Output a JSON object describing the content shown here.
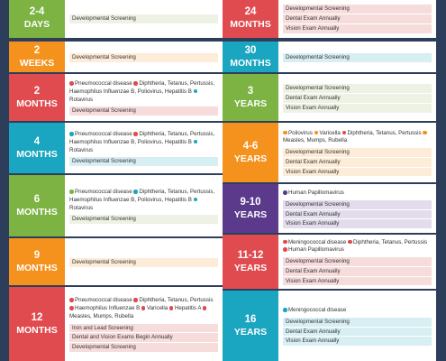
{
  "colors": {
    "red": "#e04b4f",
    "orange": "#f5921e",
    "green": "#7cb342",
    "teal": "#1aa5c0",
    "purple": "#5b3a8c",
    "navy": "#2c3e5a"
  },
  "left": [
    {
      "age_top": "2-4",
      "age_bottom": "DAYS",
      "color": "#7cb342",
      "vaccines": [],
      "tags": [
        {
          "text": "Developmental Screening",
          "bg": "#eef2e4"
        }
      ]
    },
    {
      "age_top": "2",
      "age_bottom": "WEEKS",
      "color": "#f5921e",
      "vaccines": [],
      "tags": [
        {
          "text": "Developmental Screening",
          "bg": "#fdecd7"
        }
      ]
    },
    {
      "age_top": "2",
      "age_bottom": "MONTHS",
      "color": "#e04b4f",
      "vaccines": [
        {
          "c": "#e04b4f",
          "t": "Pneumococcal disease "
        },
        {
          "c": "#e04b4f",
          "t": "Diphtheria, Tetanus, Pertussis, Haemophilus Influenzae B, Poliovirus, Hepatitis B "
        },
        {
          "c": "#1aa5c0",
          "t": "Rotavirus"
        }
      ],
      "tags": [
        {
          "text": "Developmental Screening",
          "bg": "#f7dcdc"
        }
      ]
    },
    {
      "age_top": "4",
      "age_bottom": "MONTHS",
      "color": "#1aa5c0",
      "vaccines": [
        {
          "c": "#1aa5c0",
          "t": "Pneumococcal disease "
        },
        {
          "c": "#e04b4f",
          "t": "Diphtheria, Tetanus, Pertussis, Haemophilus Influenzae B, Poliovirus, Hepatitis B "
        },
        {
          "c": "#1aa5c0",
          "t": "Rotavirus"
        }
      ],
      "tags": [
        {
          "text": "Developmental Screening",
          "bg": "#d7eef3"
        }
      ]
    },
    {
      "age_top": "6",
      "age_bottom": "MONTHS",
      "color": "#7cb342",
      "vaccines": [
        {
          "c": "#7cb342",
          "t": "Pneumococcal disease "
        },
        {
          "c": "#1aa5c0",
          "t": "Diphtheria, Tetanus, Pertussis, Haemophilus Influenzae B, Poliovirus, Hepatitis B "
        },
        {
          "c": "#1aa5c0",
          "t": "Rotavirus"
        }
      ],
      "tags": [
        {
          "text": "Developmental Screening",
          "bg": "#eef2e4"
        }
      ]
    },
    {
      "age_top": "9",
      "age_bottom": "MONTHS",
      "color": "#f5921e",
      "vaccines": [],
      "tags": [
        {
          "text": "Developmental Screening",
          "bg": "#fdecd7"
        }
      ]
    },
    {
      "age_top": "12",
      "age_bottom": "MONTHS",
      "color": "#e04b4f",
      "vaccines": [
        {
          "c": "#e04b4f",
          "t": "Pneumococcal disease "
        },
        {
          "c": "#e04b4f",
          "t": "Diphtheria, Tetanus, Pertussis "
        },
        {
          "c": "#e04b4f",
          "t": "Haemophilus Influenzae B "
        },
        {
          "c": "#e04b4f",
          "t": "Varicella "
        },
        {
          "c": "#e04b4f",
          "t": "Hepatitis A "
        },
        {
          "c": "#e04b4f",
          "t": "Measles, Mumps, Rubella"
        }
      ],
      "tags": [
        {
          "text": "Iron and Lead Screening",
          "bg": "#f7dcdc"
        },
        {
          "text": "Dental and Vision Exams Begin Annually",
          "bg": "#f7dcdc"
        },
        {
          "text": "Developmental Screening",
          "bg": "#f7dcdc"
        }
      ]
    }
  ],
  "right": [
    {
      "age_top": "24",
      "age_bottom": "MONTHS",
      "color": "#e04b4f",
      "vaccines": [],
      "tags": [
        {
          "text": "Developmental Screening",
          "bg": "#f7dcdc"
        },
        {
          "text": "Dental Exam Annually",
          "bg": "#f7dcdc"
        },
        {
          "text": "Vision Exam Annually",
          "bg": "#f7dcdc"
        }
      ]
    },
    {
      "age_top": "30",
      "age_bottom": "MONTHS",
      "color": "#1aa5c0",
      "vaccines": [],
      "tags": [
        {
          "text": "Developmental Screening",
          "bg": "#d7eef3"
        }
      ]
    },
    {
      "age_top": "3",
      "age_bottom": "YEARS",
      "color": "#7cb342",
      "vaccines": [],
      "tags": [
        {
          "text": "Developmental Screening",
          "bg": "#eef2e4"
        },
        {
          "text": "Dental Exam Annually",
          "bg": "#eef2e4"
        },
        {
          "text": "Vision Exam Annually",
          "bg": "#eef2e4"
        }
      ]
    },
    {
      "age_top": "4-6",
      "age_bottom": "YEARS",
      "color": "#f5921e",
      "vaccines": [
        {
          "c": "#f5921e",
          "t": "Poliovirus "
        },
        {
          "c": "#f5921e",
          "t": "Varicella "
        },
        {
          "c": "#e04b4f",
          "t": "Diphtheria, Tetanus, Pertussis "
        },
        {
          "c": "#f5921e",
          "t": "Measles, Mumps, Rubella"
        }
      ],
      "tags": [
        {
          "text": "Developmental Screening",
          "bg": "#fdecd7"
        },
        {
          "text": "Dental Exam Annually",
          "bg": "#fdecd7"
        },
        {
          "text": "Vision Exam Annually",
          "bg": "#fdecd7"
        }
      ]
    },
    {
      "age_top": "9-10",
      "age_bottom": "YEARS",
      "color": "#5b3a8c",
      "vaccines": [
        {
          "c": "#5b3a8c",
          "t": "Human Papillomavirus"
        }
      ],
      "tags": [
        {
          "text": "Developmental Screening",
          "bg": "#e2dcec"
        },
        {
          "text": "Dental Exam Annually",
          "bg": "#e2dcec"
        },
        {
          "text": "Vision Exam Annually",
          "bg": "#e2dcec"
        }
      ]
    },
    {
      "age_top": "11-12",
      "age_bottom": "YEARS",
      "color": "#e04b4f",
      "vaccines": [
        {
          "c": "#e04b4f",
          "t": "Meningococcal disease "
        },
        {
          "c": "#e04b4f",
          "t": "Diphtheria, Tetanus, Pertussis "
        },
        {
          "c": "#e04b4f",
          "t": "Human Papillomavirus"
        }
      ],
      "tags": [
        {
          "text": "Developmental Screening",
          "bg": "#f7dcdc"
        },
        {
          "text": "Dental Exam Annually",
          "bg": "#f7dcdc"
        },
        {
          "text": "Vision Exam Annually",
          "bg": "#f7dcdc"
        }
      ]
    },
    {
      "age_top": "16",
      "age_bottom": "YEARS",
      "color": "#1aa5c0",
      "vaccines": [
        {
          "c": "#1aa5c0",
          "t": "Meningococcal disease"
        }
      ],
      "tags": [
        {
          "text": "Developmental Screening",
          "bg": "#d7eef3"
        },
        {
          "text": "Dental Exam Annually",
          "bg": "#d7eef3"
        },
        {
          "text": "Vision Exam Annually",
          "bg": "#d7eef3"
        }
      ]
    }
  ]
}
